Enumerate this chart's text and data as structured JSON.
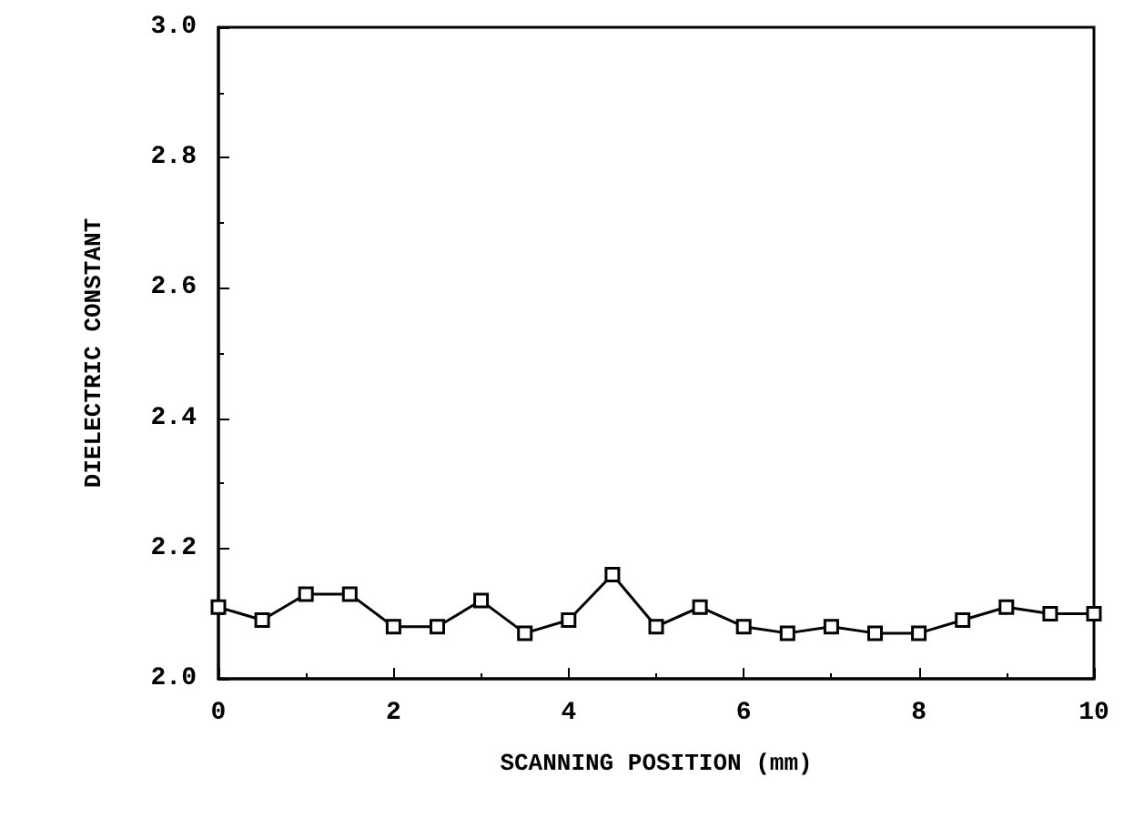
{
  "chart_data": {
    "type": "line",
    "xlabel": "SCANNING POSITION (mm)",
    "ylabel": "DIELECTRIC CONSTANT",
    "x": [
      0,
      0.5,
      1,
      1.5,
      2,
      2.5,
      3,
      3.5,
      4,
      4.5,
      5,
      5.5,
      6,
      6.5,
      7,
      7.5,
      8,
      8.5,
      9,
      9.5,
      10
    ],
    "series": [
      {
        "color": "#000000",
        "values": [
          2.11,
          2.09,
          2.13,
          2.13,
          2.08,
          2.08,
          2.12,
          2.07,
          2.09,
          2.16,
          2.08,
          2.11,
          2.08,
          2.07,
          2.08,
          2.07,
          2.07,
          2.09,
          2.11,
          2.1,
          2.1
        ]
      }
    ],
    "xlim": [
      0,
      10
    ],
    "xticks": [
      0,
      2,
      4,
      6,
      8,
      10
    ],
    "ylim": [
      2.0,
      3.0
    ],
    "yticks": [
      {
        "value": 2.0,
        "label": "2.0"
      },
      2.2,
      2.4,
      2.6,
      2.8,
      {
        "value": 3.0,
        "label": "3.0"
      }
    ],
    "marker": "square",
    "line_style": "solid",
    "grid": false
  }
}
